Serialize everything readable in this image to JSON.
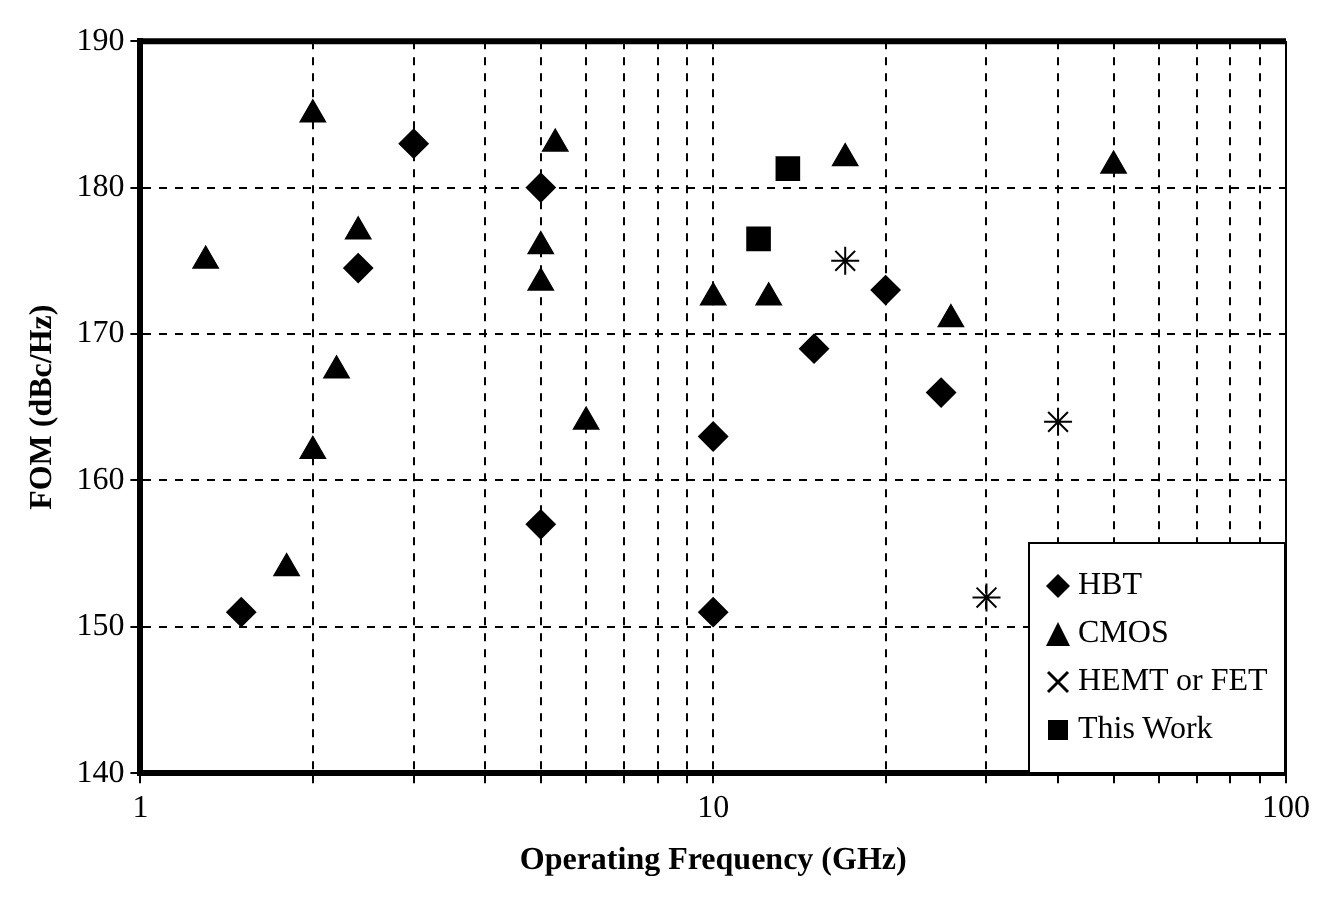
{
  "chart_data": {
    "type": "scatter",
    "xlabel": "Operating Frequency (GHz)",
    "ylabel": "FOM (dBc/Hz)",
    "log": "x",
    "xlim": [
      1,
      100
    ],
    "ylim": [
      140,
      190
    ],
    "xticks": [
      1,
      {
        "value": 2,
        "label": null
      },
      {
        "value": 3,
        "label": null
      },
      {
        "value": 4,
        "label": null
      },
      {
        "value": 5,
        "label": null
      },
      {
        "value": 6,
        "label": null
      },
      {
        "value": 7,
        "label": null
      },
      {
        "value": 8,
        "label": null
      },
      {
        "value": 9,
        "label": null
      },
      10,
      {
        "value": 20,
        "label": null
      },
      {
        "value": 30,
        "label": null
      },
      {
        "value": 40,
        "label": null
      },
      {
        "value": 50,
        "label": null
      },
      {
        "value": 60,
        "label": null
      },
      {
        "value": 70,
        "label": null
      },
      {
        "value": 80,
        "label": null
      },
      {
        "value": 90,
        "label": null
      },
      100
    ],
    "yticks": [
      140,
      150,
      160,
      170,
      180,
      190
    ],
    "grid": true,
    "legend": "bottom right",
    "series": [
      {
        "name": "HBT",
        "color": "#000000",
        "marker": "diamond",
        "x": [
          1.5,
          3,
          2.4,
          5,
          5,
          10,
          10,
          15,
          20,
          25
        ],
        "values": [
          151,
          183,
          174.5,
          180,
          157,
          163,
          151,
          169,
          173,
          166
        ]
      },
      {
        "name": "CMOS",
        "color": "#000000",
        "marker": "triangle",
        "x": [
          1.3,
          1.8,
          2,
          2,
          2.2,
          2.4,
          5,
          5,
          5.3,
          6,
          10,
          12.5,
          17,
          26,
          50
        ],
        "values": [
          175,
          154,
          185,
          162,
          167.5,
          177,
          176,
          173.5,
          183,
          164,
          172.5,
          172.5,
          182,
          171,
          181.5
        ]
      },
      {
        "name": "HEMT or FET",
        "color": "#000000",
        "marker": "cross",
        "x": [
          17,
          30,
          40
        ],
        "values": [
          175,
          152,
          164
        ]
      },
      {
        "name": "This Work",
        "color": "#000000",
        "marker": "square",
        "x": [
          12,
          13.5
        ],
        "values": [
          176.5,
          181.3
        ]
      }
    ]
  }
}
